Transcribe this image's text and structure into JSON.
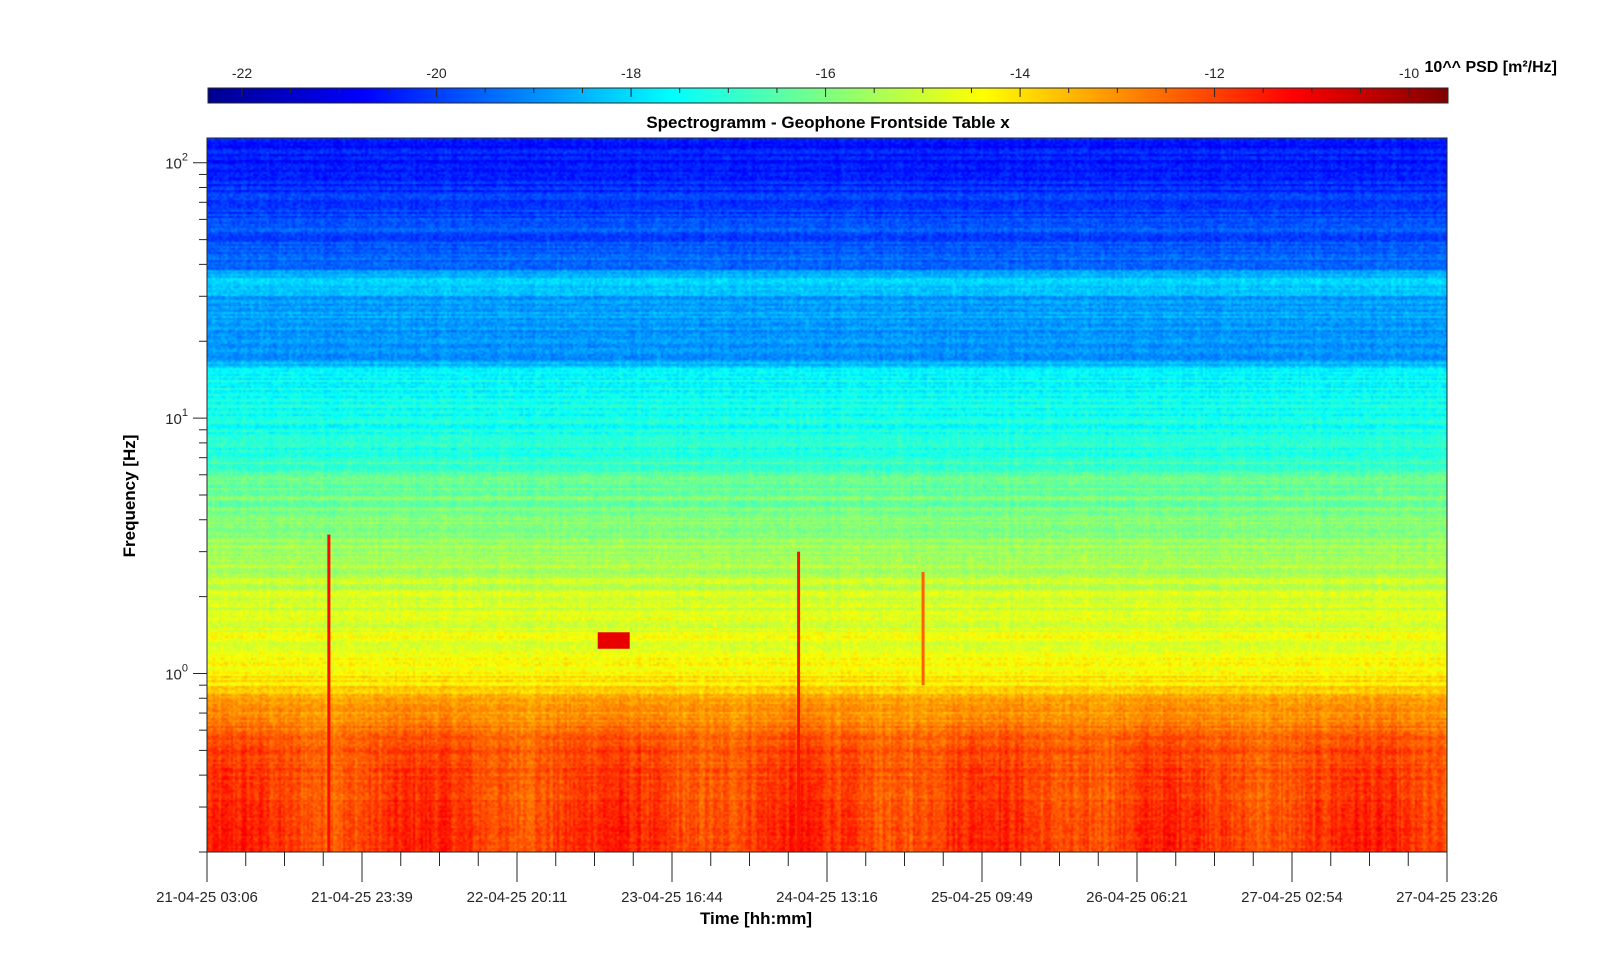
{
  "chart_data": {
    "type": "heatmap",
    "title": "Spectrogramm - Geophone Frontside Table x",
    "xlabel": "Time [hh:mm]",
    "ylabel": "Frequency [Hz]",
    "y_scale": "log",
    "ylim": [
      0.2,
      125
    ],
    "x_ticks": [
      "21-04-25 03:06",
      "21-04-25 23:39",
      "22-04-25 20:11",
      "23-04-25 16:44",
      "24-04-25 13:16",
      "25-04-25 09:49",
      "26-04-25 06:21",
      "27-04-25 02:54",
      "27-04-25 23:26"
    ],
    "x_minor_ticks_per_interval": 4,
    "y_ticks": [
      {
        "base": "10",
        "exp": "0",
        "value": 1
      },
      {
        "base": "10",
        "exp": "1",
        "value": 10
      },
      {
        "base": "10",
        "exp": "2",
        "value": 100
      }
    ],
    "colorbar": {
      "label": "10^^ PSD [m²/Hz]",
      "range": [
        -22.35,
        -9.6
      ],
      "ticks": [
        -22,
        -20,
        -18,
        -16,
        -14,
        -12,
        -10
      ],
      "tick_labels": [
        "-22",
        "-20",
        "-18",
        "-16",
        "-14",
        "-12",
        "-10"
      ],
      "colormap": "jet",
      "placement": "top"
    },
    "psd_profile": [
      {
        "freq": 0.2,
        "log10_psd": -11.8
      },
      {
        "freq": 0.3,
        "log10_psd": -12.0
      },
      {
        "freq": 0.5,
        "log10_psd": -12.2
      },
      {
        "freq": 0.7,
        "log10_psd": -13.0
      },
      {
        "freq": 0.9,
        "log10_psd": -14.0
      },
      {
        "freq": 1.2,
        "log10_psd": -14.5
      },
      {
        "freq": 2,
        "log10_psd": -15.0
      },
      {
        "freq": 4,
        "log10_psd": -16.0
      },
      {
        "freq": 5.5,
        "log10_psd": -16.2
      },
      {
        "freq": 8,
        "log10_psd": -17.2
      },
      {
        "freq": 15,
        "log10_psd": -17.5
      },
      {
        "freq": 17,
        "log10_psd": -18.9
      },
      {
        "freq": 30,
        "log10_psd": -18.6
      },
      {
        "freq": 35,
        "log10_psd": -18.3
      },
      {
        "freq": 40,
        "log10_psd": -19.5
      },
      {
        "freq": 80,
        "log10_psd": -20.2
      },
      {
        "freq": 125,
        "log10_psd": -20.6
      }
    ],
    "events": [
      {
        "time": "21-04-25 19:15",
        "freq_low": 0.2,
        "freq_high": 3.5,
        "log10_psd": -11.3
      },
      {
        "time": "23-04-25 09:00",
        "freq_low": 1.25,
        "freq_high": 1.45,
        "log10_psd": -10.9
      },
      {
        "time": "24-04-25 09:30",
        "freq_low": 0.2,
        "freq_high": 3.0,
        "log10_psd": -11.4
      },
      {
        "time": "25-04-25 02:00",
        "freq_low": 0.9,
        "freq_high": 2.5,
        "log10_psd": -12.4
      }
    ],
    "colors": {
      "axis": "#262626",
      "background": "#ffffff"
    }
  }
}
